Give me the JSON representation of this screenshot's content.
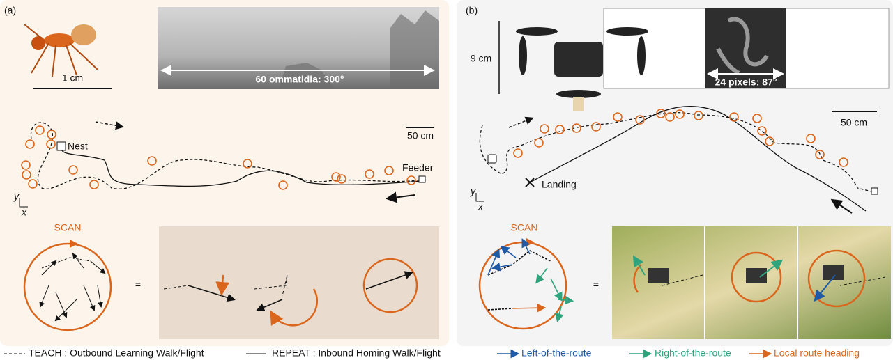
{
  "panel_a": {
    "label": "(a)",
    "ant_scale": "1 cm",
    "panorama_label": "60 ommatidia: 300°",
    "map_scale": "50 cm",
    "nest": "Nest",
    "feeder": "Feeder",
    "axis_y": "y",
    "axis_x": "x",
    "scan": "SCAN",
    "equals": "="
  },
  "panel_b": {
    "label": "(b)",
    "drone_scale": "9 cm",
    "image_label": "24 pixels: 87°",
    "map_scale": "50 cm",
    "landing": "Landing",
    "axis_y": "y",
    "axis_x": "x",
    "scan": "SCAN",
    "equals": "="
  },
  "legend": {
    "teach": "TEACH : Outbound Learning Walk/Flight",
    "repeat": "REPEAT : Inbound Homing Walk/Flight",
    "left": "Left-of-the-route",
    "right": "Right-of-the-route",
    "heading": "Local route heading"
  }
}
